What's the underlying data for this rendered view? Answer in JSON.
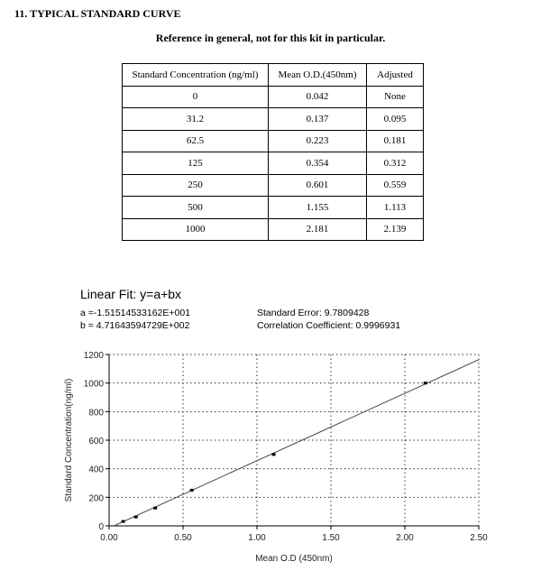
{
  "section_title": "11. TYPICAL STANDARD CURVE",
  "reference_note": "Reference in general, not for this kit in particular.",
  "table": {
    "headers": [
      "Standard Concentration (ng/ml)",
      "Mean O.D.(450nm)",
      "Adjusted"
    ],
    "rows": [
      [
        "0",
        "0.042",
        "None"
      ],
      [
        "31.2",
        "0.137",
        "0.095"
      ],
      [
        "62.5",
        "0.223",
        "0.181"
      ],
      [
        "125",
        "0.354",
        "0.312"
      ],
      [
        "250",
        "0.601",
        "0.559"
      ],
      [
        "500",
        "1.155",
        "1.113"
      ],
      [
        "1000",
        "2.181",
        "2.139"
      ]
    ]
  },
  "fit": {
    "title": "Linear Fit: y=a+bx",
    "a": "a =-1.51514533162E+001",
    "b": "b = 4.71643594729E+002",
    "std_error": "Standard Error: 9.7809428",
    "corr": "Correlation Coefficient: 0.9996931"
  },
  "chart_data": {
    "type": "scatter",
    "xlabel": "Mean O.D (450nm)",
    "ylabel": "Standard Concentration(ng/ml)",
    "xlim": [
      0,
      2.5
    ],
    "ylim": [
      0,
      1200
    ],
    "xticks": [
      "0.00",
      "0.50",
      "1.00",
      "1.50",
      "2.00",
      "2.50"
    ],
    "yticks": [
      "0",
      "200",
      "400",
      "600",
      "800",
      "1000",
      "1200"
    ],
    "grid": true,
    "points": [
      [
        0.095,
        31.2
      ],
      [
        0.181,
        62.5
      ],
      [
        0.312,
        125
      ],
      [
        0.559,
        250
      ],
      [
        1.113,
        500
      ],
      [
        2.139,
        1000
      ]
    ],
    "fit_line": {
      "a": -15.1514533162,
      "b": 471.643594729
    }
  }
}
